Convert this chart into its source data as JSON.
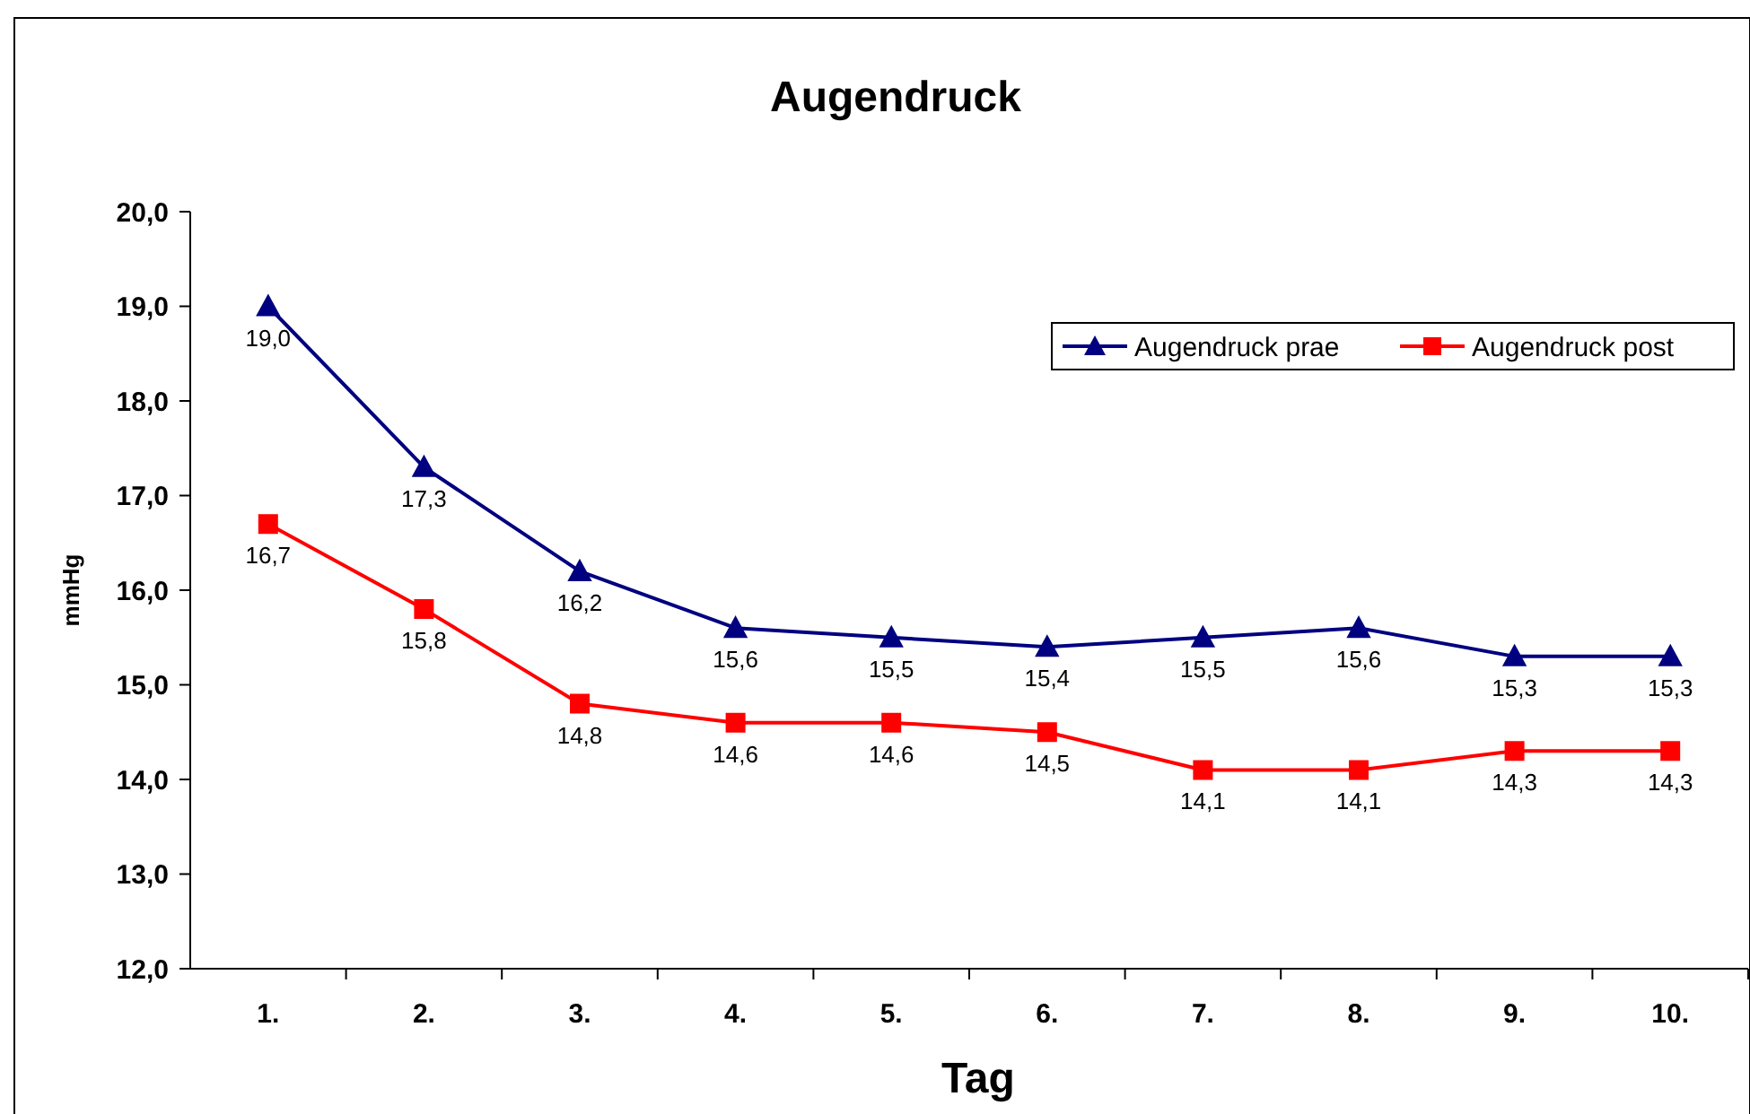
{
  "chart_data": {
    "type": "line",
    "title": "Augendruck",
    "xlabel": "Tag",
    "ylabel": "mmHg",
    "categories": [
      "1.",
      "2.",
      "3.",
      "4.",
      "5.",
      "6.",
      "7.",
      "8.",
      "9.",
      "10."
    ],
    "series": [
      {
        "name": "Augendruck prae",
        "color": "#000080",
        "marker": "triangle",
        "values": [
          19.0,
          17.3,
          16.2,
          15.6,
          15.5,
          15.4,
          15.5,
          15.6,
          15.3,
          15.3
        ],
        "value_labels": [
          "19,0",
          "17,3",
          "16,2",
          "15,6",
          "15,5",
          "15,4",
          "15,5",
          "15,6",
          "15,3",
          "15,3"
        ]
      },
      {
        "name": "Augendruck post",
        "color": "#ff0000",
        "marker": "square",
        "values": [
          16.7,
          15.8,
          14.8,
          14.6,
          14.6,
          14.5,
          14.1,
          14.1,
          14.3,
          14.3
        ],
        "value_labels": [
          "16,7",
          "15,8",
          "14,8",
          "14,6",
          "14,6",
          "14,5",
          "14,1",
          "14,1",
          "14,3",
          "14,3"
        ]
      }
    ],
    "ylim": [
      12,
      20
    ],
    "yticks": [
      {
        "value": 12,
        "label": "12,0"
      },
      {
        "value": 13,
        "label": "13,0"
      },
      {
        "value": 14,
        "label": "14,0"
      },
      {
        "value": 15,
        "label": "15,0"
      },
      {
        "value": 16,
        "label": "16,0"
      },
      {
        "value": 17,
        "label": "17,0"
      },
      {
        "value": 18,
        "label": "18,0"
      },
      {
        "value": 19,
        "label": "19,0"
      },
      {
        "value": 20,
        "label": "20,0"
      }
    ],
    "grid": false,
    "legend": "top right",
    "line_style": "solid"
  }
}
